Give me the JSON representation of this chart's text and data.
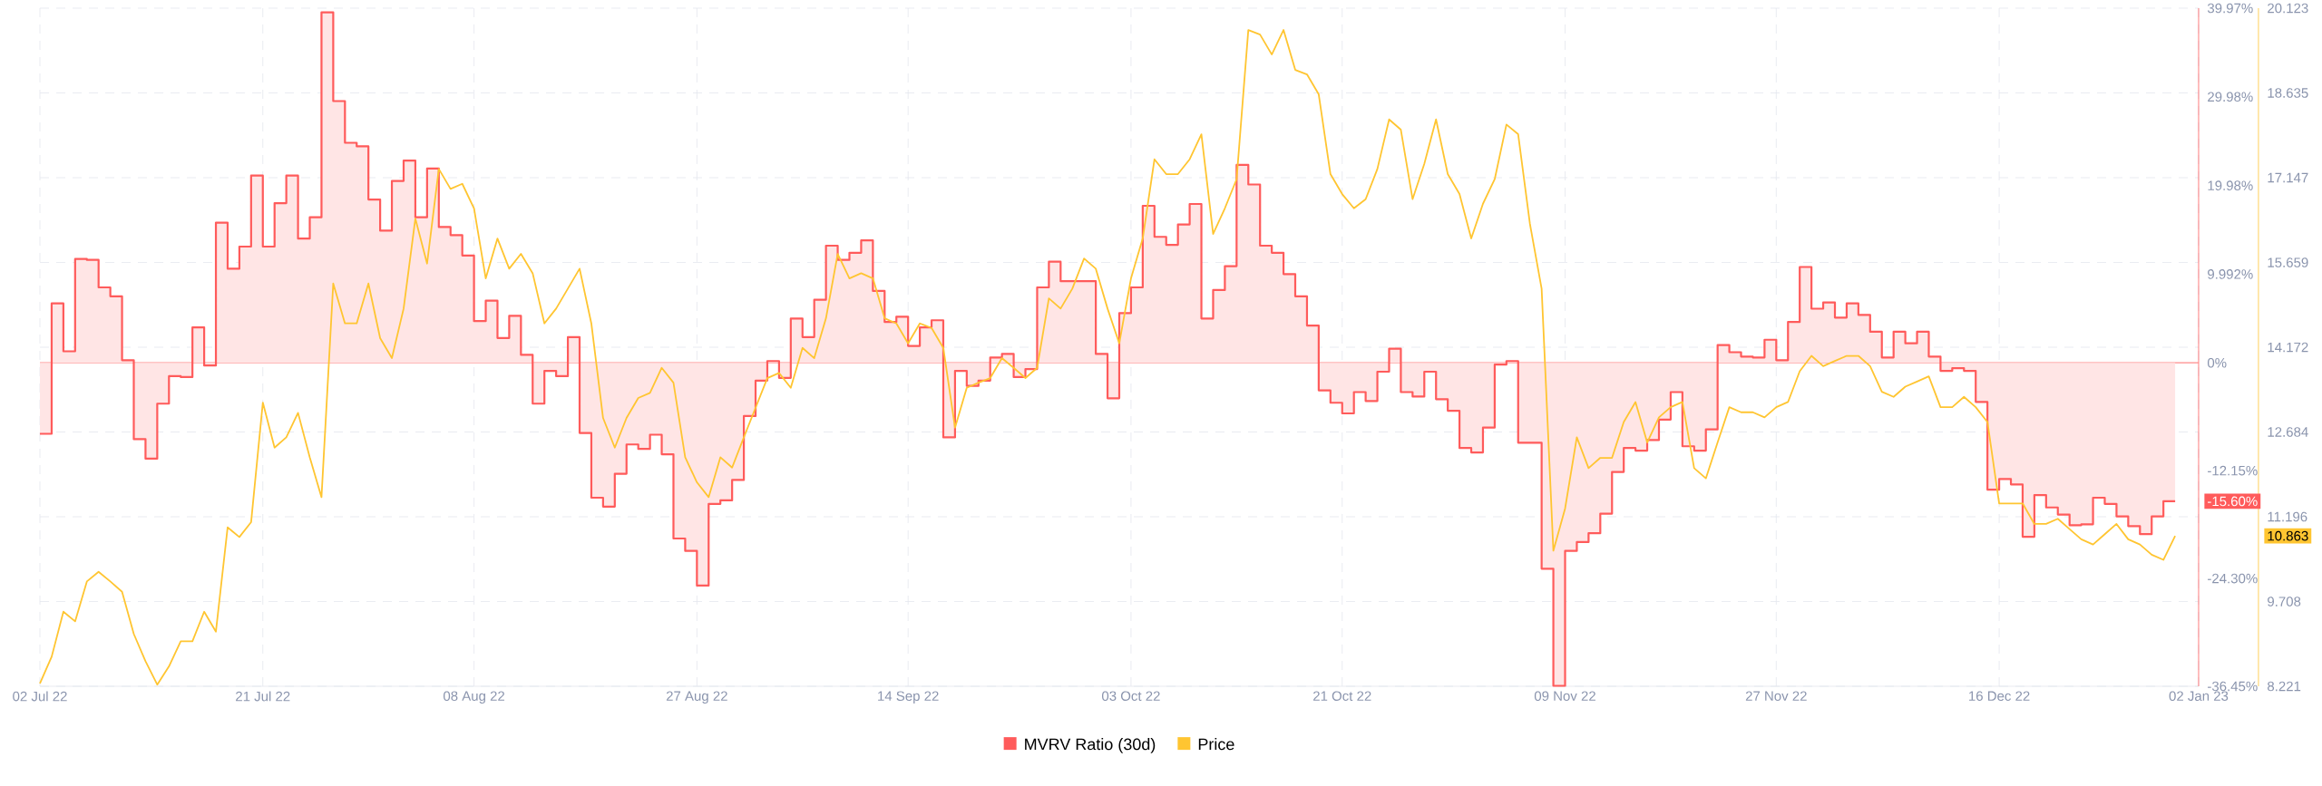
{
  "chart_data": {
    "type": "line",
    "x": [
      "2022-07-02",
      "2022-07-03",
      "2022-07-04",
      "2022-07-05",
      "2022-07-06",
      "2022-07-07",
      "2022-07-08",
      "2022-07-09",
      "2022-07-10",
      "2022-07-11",
      "2022-07-12",
      "2022-07-13",
      "2022-07-14",
      "2022-07-15",
      "2022-07-16",
      "2022-07-17",
      "2022-07-18",
      "2022-07-19",
      "2022-07-20",
      "2022-07-21",
      "2022-07-22",
      "2022-07-23",
      "2022-07-24",
      "2022-07-25",
      "2022-07-26",
      "2022-07-27",
      "2022-07-28",
      "2022-07-29",
      "2022-07-30",
      "2022-07-31",
      "2022-08-01",
      "2022-08-02",
      "2022-08-03",
      "2022-08-04",
      "2022-08-05",
      "2022-08-06",
      "2022-08-07",
      "2022-08-08",
      "2022-08-09",
      "2022-08-10",
      "2022-08-11",
      "2022-08-12",
      "2022-08-13",
      "2022-08-14",
      "2022-08-15",
      "2022-08-16",
      "2022-08-17",
      "2022-08-18",
      "2022-08-19",
      "2022-08-20",
      "2022-08-21",
      "2022-08-22",
      "2022-08-23",
      "2022-08-24",
      "2022-08-25",
      "2022-08-26",
      "2022-08-27",
      "2022-08-28",
      "2022-08-29",
      "2022-08-30",
      "2022-08-31",
      "2022-09-01",
      "2022-09-02",
      "2022-09-03",
      "2022-09-04",
      "2022-09-05",
      "2022-09-06",
      "2022-09-07",
      "2022-09-08",
      "2022-09-09",
      "2022-09-10",
      "2022-09-11",
      "2022-09-12",
      "2022-09-13",
      "2022-09-14",
      "2022-09-15",
      "2022-09-16",
      "2022-09-17",
      "2022-09-18",
      "2022-09-19",
      "2022-09-20",
      "2022-09-21",
      "2022-09-22",
      "2022-09-23",
      "2022-09-24",
      "2022-09-25",
      "2022-09-26",
      "2022-09-27",
      "2022-09-28",
      "2022-09-29",
      "2022-09-30",
      "2022-10-01",
      "2022-10-02",
      "2022-10-03",
      "2022-10-04",
      "2022-10-05",
      "2022-10-06",
      "2022-10-07",
      "2022-10-08",
      "2022-10-09",
      "2022-10-10",
      "2022-10-11",
      "2022-10-12",
      "2022-10-13",
      "2022-10-14",
      "2022-10-15",
      "2022-10-16",
      "2022-10-17",
      "2022-10-18",
      "2022-10-19",
      "2022-10-20",
      "2022-10-21",
      "2022-10-22",
      "2022-10-23",
      "2022-10-24",
      "2022-10-25",
      "2022-10-26",
      "2022-10-27",
      "2022-10-28",
      "2022-10-29",
      "2022-10-30",
      "2022-10-31",
      "2022-11-01",
      "2022-11-02",
      "2022-11-03",
      "2022-11-04",
      "2022-11-05",
      "2022-11-06",
      "2022-11-07",
      "2022-11-08",
      "2022-11-09",
      "2022-11-10",
      "2022-11-11",
      "2022-11-12",
      "2022-11-13",
      "2022-11-14",
      "2022-11-15",
      "2022-11-16",
      "2022-11-17",
      "2022-11-18",
      "2022-11-19",
      "2022-11-20",
      "2022-11-21",
      "2022-11-22",
      "2022-11-23",
      "2022-11-24",
      "2022-11-25",
      "2022-11-26",
      "2022-11-27",
      "2022-11-28",
      "2022-11-29",
      "2022-11-30",
      "2022-12-01",
      "2022-12-02",
      "2022-12-03",
      "2022-12-04",
      "2022-12-05",
      "2022-12-06",
      "2022-12-07",
      "2022-12-08",
      "2022-12-09",
      "2022-12-10",
      "2022-12-11",
      "2022-12-12",
      "2022-12-13",
      "2022-12-14",
      "2022-12-15",
      "2022-12-16",
      "2022-12-17",
      "2022-12-18",
      "2022-12-19",
      "2022-12-20",
      "2022-12-21",
      "2022-12-22",
      "2022-12-23",
      "2022-12-24",
      "2022-12-25",
      "2022-12-26",
      "2022-12-27",
      "2022-12-28",
      "2022-12-29",
      "2022-12-30",
      "2022-12-31"
    ],
    "series": [
      {
        "name": "MVRV Ratio (30d)",
        "type": "step",
        "color": "#ff5b5b",
        "values": [
          -8.0,
          6.7,
          1.3,
          11.7,
          11.6,
          8.5,
          7.5,
          0.3,
          -8.6,
          -10.8,
          -4.6,
          -1.5,
          -1.6,
          4.0,
          -0.3,
          15.8,
          10.6,
          13.1,
          21.1,
          13.1,
          18.0,
          21.1,
          14.0,
          16.4,
          39.5,
          29.5,
          24.8,
          24.4,
          18.4,
          14.9,
          20.5,
          22.8,
          16.4,
          21.9,
          15.3,
          14.4,
          12.1,
          4.7,
          7.0,
          2.8,
          5.3,
          0.9,
          -4.6,
          -0.9,
          -1.5,
          2.9,
          -7.9,
          -15.2,
          -16.2,
          -12.5,
          -9.2,
          -9.7,
          -8.1,
          -10.3,
          -19.8,
          -21.2,
          -25.1,
          -15.9,
          -15.5,
          -13.2,
          -6.0,
          -2.0,
          0.2,
          -1.7,
          5.0,
          2.9,
          7.1,
          13.2,
          11.6,
          12.4,
          13.8,
          8.1,
          4.6,
          5.2,
          1.9,
          4.0,
          4.8,
          -8.4,
          -0.9,
          -2.6,
          -2.0,
          0.6,
          1.0,
          -1.6,
          -0.7,
          8.5,
          11.4,
          9.2,
          9.2,
          9.2,
          1.0,
          -4.0,
          5.6,
          8.5,
          17.7,
          14.2,
          13.3,
          15.6,
          17.9,
          5.0,
          8.2,
          10.9,
          22.3,
          20.1,
          13.2,
          12.4,
          10.0,
          7.5,
          4.2,
          -3.1,
          -4.5,
          -5.7,
          -3.3,
          -4.3,
          -1.0,
          1.6,
          -3.3,
          -3.8,
          -1.0,
          -4.1,
          -5.4,
          -9.6,
          -10.1,
          -7.3,
          -0.2,
          0.2,
          -9.0,
          -9.0,
          -23.2,
          -36.4,
          -21.2,
          -20.2,
          -19.2,
          -17.0,
          -12.3,
          -9.6,
          -9.9,
          -8.7,
          -6.4,
          -3.3,
          -9.4,
          -9.9,
          -7.5,
          2.0,
          1.2,
          0.7,
          0.6,
          2.6,
          0.3,
          4.6,
          10.8,
          6.1,
          6.8,
          5.1,
          6.7,
          5.4,
          3.5,
          0.6,
          3.5,
          2.2,
          3.5,
          0.7,
          -0.9,
          -0.6,
          -0.9,
          -4.4,
          -14.3,
          -13.1,
          -13.7,
          -19.6,
          -14.9,
          -16.3,
          -17.1,
          -18.3,
          -18.2,
          -15.2,
          -15.9,
          -17.3,
          -18.4,
          -19.3,
          -17.3,
          -15.6,
          -15.6
        ]
      },
      {
        "name": "Price",
        "axis": "y2",
        "color": "#ffc531",
        "values": [
          8.27,
          8.74,
          9.53,
          9.36,
          10.06,
          10.23,
          10.06,
          9.88,
          9.14,
          8.66,
          8.25,
          8.57,
          9.01,
          9.01,
          9.53,
          9.18,
          11.01,
          10.84,
          11.1,
          13.2,
          12.41,
          12.59,
          13.02,
          12.24,
          11.54,
          15.29,
          14.59,
          14.59,
          15.29,
          14.33,
          13.98,
          14.85,
          16.43,
          15.64,
          17.3,
          16.95,
          17.04,
          16.61,
          15.38,
          16.08,
          15.55,
          15.81,
          15.47,
          14.59,
          14.85,
          15.2,
          15.55,
          14.59,
          12.93,
          12.41,
          12.93,
          13.28,
          13.37,
          13.81,
          13.55,
          12.24,
          11.8,
          11.54,
          12.24,
          12.06,
          12.59,
          13.11,
          13.63,
          13.72,
          13.46,
          14.16,
          13.98,
          14.68,
          15.81,
          15.38,
          15.47,
          15.38,
          14.68,
          14.59,
          14.24,
          14.59,
          14.51,
          14.16,
          12.76,
          13.46,
          13.55,
          13.63,
          13.98,
          13.81,
          13.63,
          13.81,
          15.03,
          14.85,
          15.2,
          15.73,
          15.55,
          14.85,
          14.24,
          15.38,
          16.08,
          17.47,
          17.21,
          17.21,
          17.47,
          17.91,
          16.16,
          16.61,
          17.12,
          19.74,
          19.66,
          19.31,
          19.74,
          19.04,
          18.96,
          18.61,
          17.21,
          16.86,
          16.61,
          16.77,
          17.3,
          18.17,
          17.99,
          16.77,
          17.39,
          18.17,
          17.21,
          16.86,
          16.08,
          16.69,
          17.12,
          18.08,
          17.91,
          16.34,
          15.2,
          10.6,
          11.34,
          12.59,
          12.05,
          12.23,
          12.23,
          12.86,
          13.21,
          12.5,
          12.94,
          13.12,
          13.21,
          12.05,
          11.87,
          12.5,
          13.12,
          13.03,
          13.03,
          12.94,
          13.12,
          13.21,
          13.75,
          14.02,
          13.84,
          13.93,
          14.02,
          14.02,
          13.84,
          13.39,
          13.3,
          13.48,
          13.57,
          13.66,
          13.12,
          13.12,
          13.3,
          13.12,
          12.86,
          11.43,
          11.43,
          11.43,
          11.07,
          11.07,
          11.16,
          10.98,
          10.8,
          10.71,
          10.89,
          11.07,
          10.8,
          10.71,
          10.53,
          10.44,
          10.86
        ]
      }
    ],
    "xlim": [
      "2022-07-02",
      "2023-01-02"
    ],
    "xticks": [
      {
        "value": "2022-07-02",
        "label": "02 Jul 22"
      },
      {
        "value": "2022-07-21",
        "label": "21 Jul 22"
      },
      {
        "value": "2022-08-08",
        "label": "08 Aug 22"
      },
      {
        "value": "2022-08-27",
        "label": "27 Aug 22"
      },
      {
        "value": "2022-09-14",
        "label": "14 Sep 22"
      },
      {
        "value": "2022-10-03",
        "label": "03 Oct 22"
      },
      {
        "value": "2022-10-21",
        "label": "21 Oct 22"
      },
      {
        "value": "2022-11-09",
        "label": "09 Nov 22"
      },
      {
        "value": "2022-11-27",
        "label": "27 Nov 22"
      },
      {
        "value": "2022-12-16",
        "label": "16 Dec 22"
      },
      {
        "value": "2023-01-02",
        "label": "02 Jan 23"
      }
    ],
    "ylim": [
      -36.45,
      39.97
    ],
    "yticks": [
      {
        "value": 39.97,
        "label": "39.97%"
      },
      {
        "value": 29.98,
        "label": "29.98%"
      },
      {
        "value": 19.98,
        "label": "19.98%"
      },
      {
        "value": 9.992,
        "label": "9.992%"
      },
      {
        "value": 0,
        "label": "0%"
      },
      {
        "value": -12.15,
        "label": "-12.15%"
      },
      {
        "value": -24.3,
        "label": "-24.30%"
      },
      {
        "value": -36.45,
        "label": "-36.45%"
      }
    ],
    "y2lim": [
      8.221,
      20.123
    ],
    "y2ticks": [
      20.123,
      18.635,
      17.147,
      15.659,
      14.172,
      12.684,
      11.196,
      9.708,
      8.221
    ],
    "ref_lines": [
      {
        "axis": "y",
        "value": 0,
        "color": "#ff8a8a"
      }
    ],
    "annotations": [
      "-15.60%",
      "10.863"
    ],
    "grid": true,
    "legend": "bottom"
  }
}
